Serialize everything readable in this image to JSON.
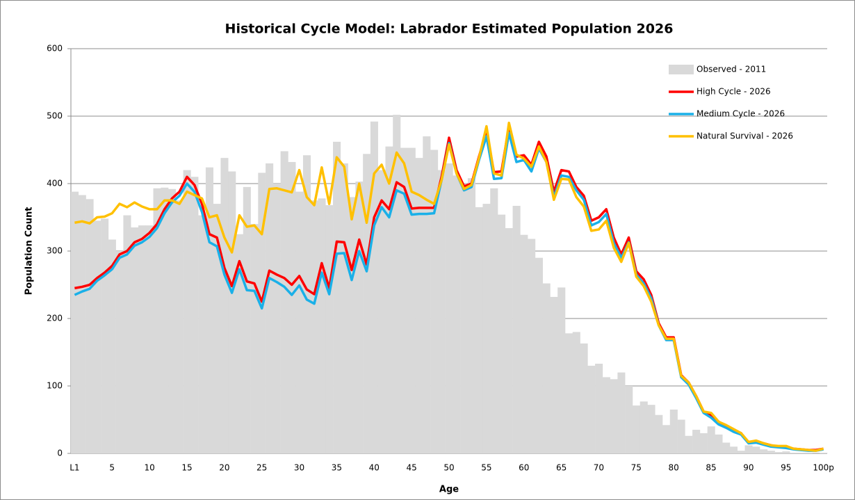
{
  "chart_data": {
    "type": "combo",
    "title": "Historical Cycle Model: Labrador Estimated Population 2026",
    "x_label": "Age",
    "y_label": "Population Count",
    "categories": [
      "L1",
      null,
      null,
      null,
      null,
      "5",
      null,
      null,
      null,
      null,
      "10",
      null,
      null,
      null,
      null,
      "15",
      null,
      null,
      null,
      null,
      "20",
      null,
      null,
      null,
      null,
      "25",
      null,
      null,
      null,
      null,
      "30",
      null,
      null,
      null,
      null,
      "35",
      null,
      null,
      null,
      null,
      "40",
      null,
      null,
      null,
      null,
      "45",
      null,
      null,
      null,
      null,
      "50",
      null,
      null,
      null,
      null,
      "55",
      null,
      null,
      null,
      null,
      "60",
      null,
      null,
      null,
      null,
      "65",
      null,
      null,
      null,
      null,
      "70",
      null,
      null,
      null,
      null,
      "75",
      null,
      null,
      null,
      null,
      "80",
      null,
      null,
      null,
      null,
      "85",
      null,
      null,
      null,
      null,
      "90",
      null,
      null,
      null,
      null,
      "95",
      null,
      null,
      null,
      null,
      "100p"
    ],
    "series": [
      {
        "name": "Observed - 2011",
        "type": "bar",
        "color": "#d9d9d9",
        "values": [
          388,
          383,
          377,
          345,
          348,
          317,
          300,
          353,
          335,
          338,
          338,
          393,
          394,
          392,
          375,
          420,
          410,
          353,
          424,
          370,
          438,
          418,
          325,
          395,
          340,
          416,
          430,
          400,
          448,
          432,
          388,
          442,
          375,
          378,
          368,
          462,
          430,
          380,
          403,
          444,
          492,
          420,
          455,
          502,
          453,
          453,
          438,
          470,
          450,
          420,
          430,
          412,
          400,
          408,
          365,
          370,
          393,
          354,
          334,
          367,
          324,
          318,
          290,
          252,
          232,
          246,
          178,
          180,
          163,
          130,
          133,
          113,
          110,
          120,
          100,
          71,
          77,
          72,
          57,
          42,
          65,
          50,
          26,
          35,
          30,
          40,
          28,
          16,
          10,
          4,
          12,
          10,
          6,
          4,
          2,
          3,
          1,
          1,
          1,
          0,
          1
        ]
      },
      {
        "name": "High Cycle - 2026",
        "type": "line",
        "color": "#ff0000",
        "values": [
          245,
          247,
          250,
          260,
          268,
          278,
          295,
          300,
          313,
          318,
          327,
          340,
          362,
          378,
          388,
          410,
          398,
          370,
          325,
          320,
          275,
          248,
          285,
          255,
          252,
          225,
          271,
          265,
          260,
          250,
          263,
          243,
          236,
          282,
          245,
          314,
          313,
          272,
          317,
          280,
          350,
          375,
          362,
          402,
          395,
          363,
          364,
          364,
          364,
          410,
          468,
          420,
          396,
          400,
          440,
          478,
          417,
          418,
          485,
          440,
          442,
          428,
          462,
          440,
          388,
          420,
          418,
          395,
          382,
          345,
          350,
          362,
          320,
          295,
          320,
          270,
          258,
          235,
          193,
          172,
          172,
          116,
          105,
          85,
          62,
          57,
          47,
          40,
          35,
          30,
          16,
          18,
          15,
          12,
          10,
          10,
          7,
          6,
          5,
          5,
          7
        ]
      },
      {
        "name": "Medium Cycle - 2026",
        "type": "line",
        "color": "#1ab0e8",
        "values": [
          235,
          240,
          244,
          256,
          264,
          273,
          290,
          295,
          308,
          313,
          321,
          334,
          356,
          372,
          382,
          400,
          388,
          358,
          313,
          307,
          265,
          238,
          273,
          242,
          241,
          215,
          260,
          254,
          247,
          235,
          249,
          228,
          222,
          268,
          236,
          296,
          297,
          257,
          300,
          270,
          338,
          365,
          350,
          390,
          385,
          354,
          355,
          355,
          356,
          405,
          460,
          415,
          390,
          395,
          435,
          470,
          407,
          408,
          475,
          432,
          435,
          418,
          452,
          432,
          380,
          412,
          410,
          390,
          376,
          338,
          343,
          355,
          312,
          290,
          313,
          265,
          252,
          230,
          190,
          168,
          168,
          113,
          102,
          82,
          60,
          53,
          43,
          38,
          32,
          28,
          15,
          16,
          13,
          10,
          9,
          8,
          6,
          5,
          4,
          4,
          6
        ]
      },
      {
        "name": "Natural Survival - 2026",
        "type": "line",
        "color": "#ffc000",
        "values": [
          342,
          344,
          341,
          350,
          351,
          356,
          370,
          365,
          372,
          366,
          362,
          362,
          375,
          375,
          370,
          388,
          383,
          378,
          350,
          353,
          320,
          298,
          353,
          336,
          338,
          325,
          392,
          393,
          390,
          387,
          420,
          380,
          368,
          424,
          370,
          439,
          425,
          347,
          400,
          342,
          415,
          428,
          400,
          446,
          430,
          388,
          383,
          376,
          370,
          405,
          458,
          415,
          392,
          398,
          438,
          485,
          415,
          412,
          490,
          443,
          437,
          425,
          455,
          432,
          376,
          407,
          406,
          380,
          366,
          330,
          332,
          345,
          305,
          284,
          312,
          262,
          248,
          225,
          190,
          170,
          170,
          115,
          105,
          85,
          62,
          60,
          47,
          42,
          36,
          30,
          17,
          19,
          15,
          12,
          11,
          11,
          7,
          6,
          5,
          4,
          7
        ]
      }
    ],
    "ylim": [
      0,
      600
    ],
    "yticks": [
      0,
      100,
      200,
      300,
      400,
      500,
      600
    ],
    "grid": true,
    "legend": "upper right"
  }
}
